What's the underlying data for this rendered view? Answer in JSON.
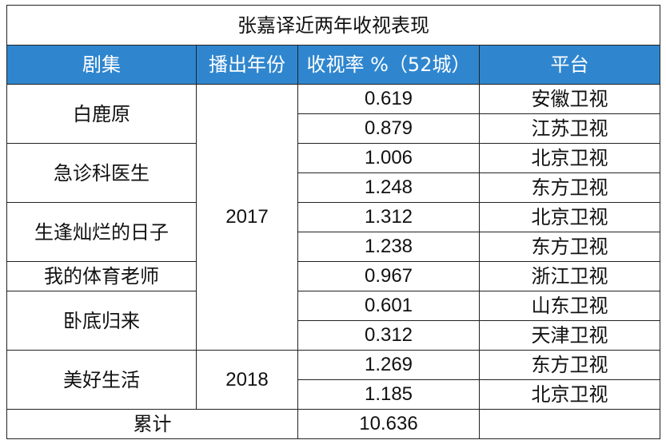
{
  "title": "张嘉译近两年收视表现",
  "headers": {
    "drama": "剧集",
    "year": "播出年份",
    "rating": "收视率 %（52城）",
    "platform": "平台"
  },
  "dramas": [
    {
      "name": "白鹿原"
    },
    {
      "name": "急诊科医生"
    },
    {
      "name": "生逢灿烂的日子"
    },
    {
      "name": "我的体育老师"
    },
    {
      "name": "卧底归来"
    },
    {
      "name": "美好生活"
    }
  ],
  "years": [
    "2017",
    "2018"
  ],
  "rows": [
    {
      "rating": "0.619",
      "platform": "安徽卫视"
    },
    {
      "rating": "0.879",
      "platform": "江苏卫视"
    },
    {
      "rating": "1.006",
      "platform": "北京卫视"
    },
    {
      "rating": "1.248",
      "platform": "东方卫视"
    },
    {
      "rating": "1.312",
      "platform": "北京卫视"
    },
    {
      "rating": "1.238",
      "platform": "东方卫视"
    },
    {
      "rating": "0.967",
      "platform": "浙江卫视"
    },
    {
      "rating": "0.601",
      "platform": "山东卫视"
    },
    {
      "rating": "0.312",
      "platform": "天津卫视"
    },
    {
      "rating": "1.269",
      "platform": "东方卫视"
    },
    {
      "rating": "1.185",
      "platform": "北京卫视"
    }
  ],
  "total": {
    "label": "累计",
    "value": "10.636"
  },
  "colors": {
    "header_bg": "#2f86cf",
    "header_text": "#ffffff",
    "border": "#222222"
  }
}
